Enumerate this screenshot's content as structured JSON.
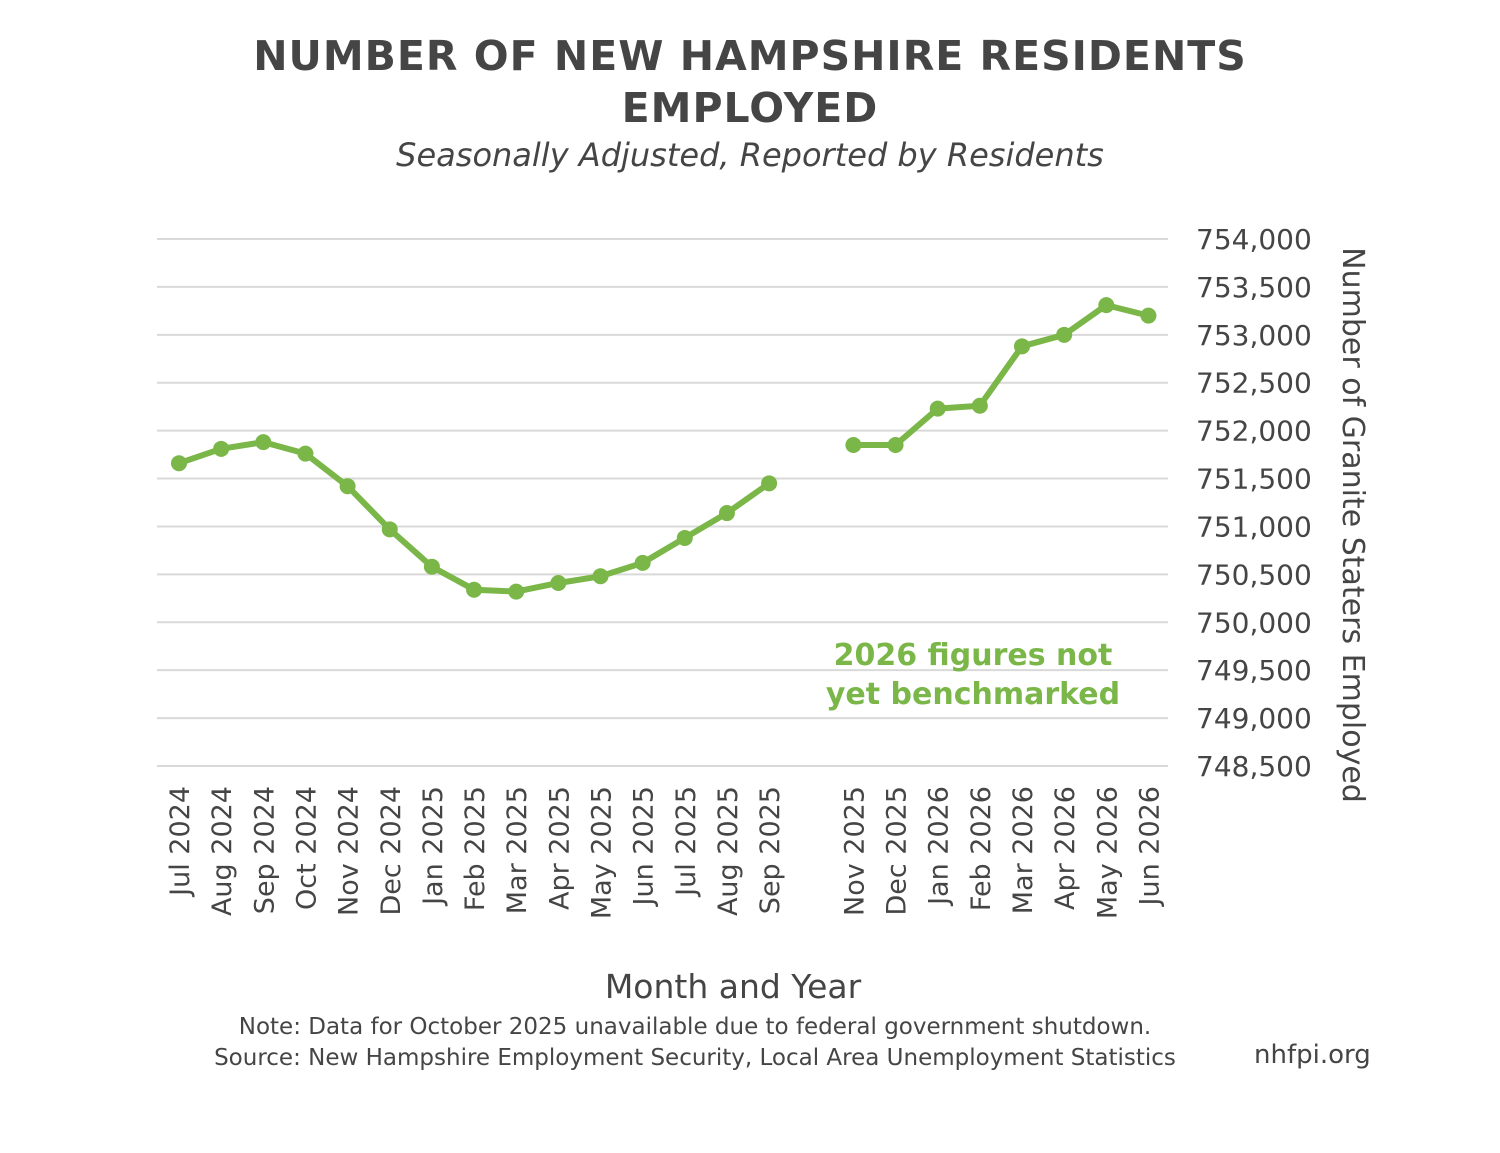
{
  "chart_data": {
    "type": "line",
    "title_line1": "NUMBER OF NEW HAMPSHIRE RESIDENTS",
    "title_line2": "EMPLOYED",
    "subtitle": "Seasonally Adjusted, Reported by Residents",
    "xlabel": "Month and Year",
    "ylabel": "Number of Granite Staters Employed",
    "ylim": [
      748500,
      754000
    ],
    "ytick_labels": [
      "754,000",
      "753,500",
      "753,000",
      "752,500",
      "752,000",
      "751,500",
      "751,000",
      "750,500",
      "750,000",
      "749,500",
      "749,000",
      "748,500"
    ],
    "ytick_values": [
      754000,
      753500,
      753000,
      752500,
      752000,
      751500,
      751000,
      750500,
      750000,
      749500,
      749000,
      748500
    ],
    "y_axis_position": "right",
    "grid": true,
    "color": "#7ab648",
    "categories": [
      "Jul 2024",
      "Aug 2024",
      "Sep 2024",
      "Oct 2024",
      "Nov 2024",
      "Dec 2024",
      "Jan 2025",
      "Feb 2025",
      "Mar 2025",
      "Apr 2025",
      "May 2025",
      "Jun 2025",
      "Jul 2025",
      "Aug 2025",
      "Sep 2025",
      "",
      "Nov 2025",
      "Dec 2025",
      "Jan 2026",
      "Feb 2026",
      "Mar 2026",
      "Apr 2026",
      "May 2026",
      "Jun 2026"
    ],
    "values": [
      751660,
      751810,
      751880,
      751760,
      751420,
      750970,
      750580,
      750340,
      750320,
      750410,
      750480,
      750620,
      750880,
      751140,
      751450,
      null,
      751850,
      751850,
      752230,
      752260,
      752880,
      753000,
      753310,
      753200
    ],
    "annotation_line1": "2026 figures not",
    "annotation_line2": "yet benchmarked"
  },
  "note": "Note: Data for October 2025 unavailable due to federal government shutdown.",
  "source": "Source: New Hampshire Employment Security, Local Area Unemployment Statistics",
  "brand": "nhfpi.org"
}
